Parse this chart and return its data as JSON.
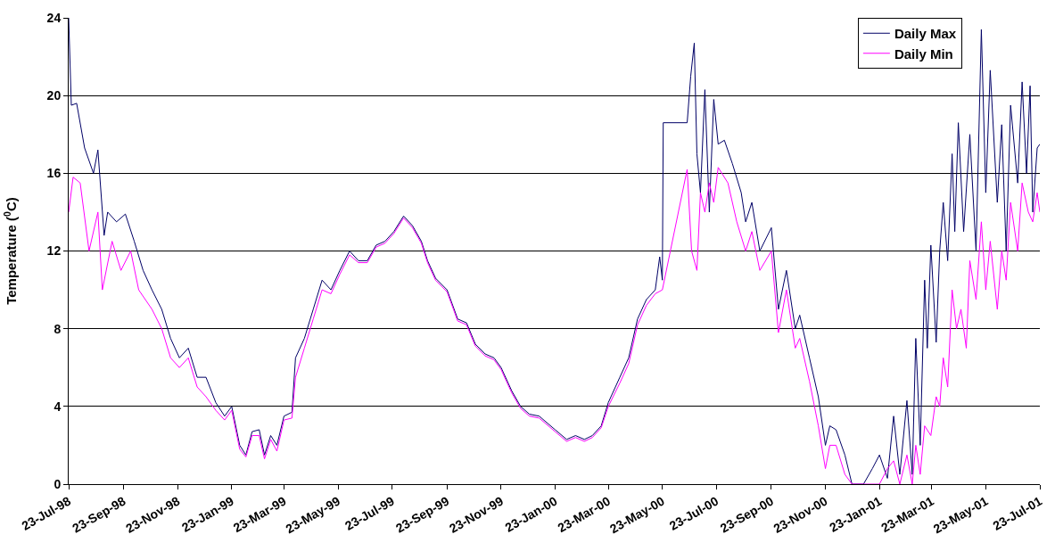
{
  "chart_data": {
    "type": "line",
    "ylabel": "Temperature ($^{0}$C)",
    "xlim": [
      "1998-07-23",
      "2001-07-23"
    ],
    "ylim": [
      0,
      24
    ],
    "yticks": [
      0,
      4,
      8,
      12,
      16,
      20,
      24
    ],
    "xticks": [
      {
        "value": "1998-07-23",
        "label": "23-Jul-98"
      },
      {
        "value": "1998-09-23",
        "label": "23-Sep-98"
      },
      {
        "value": "1998-11-23",
        "label": "23-Nov-98"
      },
      {
        "value": "1999-01-23",
        "label": "23-Jan-99"
      },
      {
        "value": "1999-03-23",
        "label": "23-Mar-99"
      },
      {
        "value": "1999-05-23",
        "label": "23-May-99"
      },
      {
        "value": "1999-07-23",
        "label": "23-Jul-99"
      },
      {
        "value": "1999-09-23",
        "label": "23-Sep-99"
      },
      {
        "value": "1999-11-23",
        "label": "23-Nov-99"
      },
      {
        "value": "2000-01-23",
        "label": "23-Jan-00"
      },
      {
        "value": "2000-03-23",
        "label": "23-Mar-00"
      },
      {
        "value": "2000-05-23",
        "label": "23-May-00"
      },
      {
        "value": "2000-07-23",
        "label": "23-Jul-00"
      },
      {
        "value": "2000-09-23",
        "label": "23-Sep-00"
      },
      {
        "value": "2000-11-23",
        "label": "23-Nov-00"
      },
      {
        "value": "2001-01-23",
        "label": "23-Jan-01"
      },
      {
        "value": "2001-03-23",
        "label": "23-Mar-01"
      },
      {
        "value": "2001-05-23",
        "label": "23-May-01"
      },
      {
        "value": "2001-07-23",
        "label": "23-Jul-01"
      }
    ],
    "grid": "y",
    "legend": "top right",
    "marker": "none",
    "line_style": "solid",
    "series": [
      {
        "name": "Daily Max",
        "color": "#000066",
        "x": [
          "1998-07-23",
          "1998-07-26",
          "1998-08-01",
          "1998-08-10",
          "1998-08-20",
          "1998-08-25",
          "1998-09-01",
          "1998-09-05",
          "1998-09-15",
          "1998-09-25",
          "1998-10-05",
          "1998-10-15",
          "1998-10-25",
          "1998-11-05",
          "1998-11-15",
          "1998-11-25",
          "1998-12-05",
          "1998-12-15",
          "1998-12-25",
          "1999-01-05",
          "1999-01-15",
          "1999-01-23",
          "1999-02-01",
          "1999-02-08",
          "1999-02-15",
          "1999-02-23",
          "1999-03-01",
          "1999-03-08",
          "1999-03-15",
          "1999-03-23",
          "1999-04-01",
          "1999-04-05",
          "1999-04-15",
          "1999-04-25",
          "1999-05-05",
          "1999-05-15",
          "1999-05-25",
          "1999-06-05",
          "1999-06-15",
          "1999-06-25",
          "1999-07-05",
          "1999-07-15",
          "1999-07-25",
          "1999-08-05",
          "1999-08-15",
          "1999-08-25",
          "1999-09-01",
          "1999-09-10",
          "1999-09-23",
          "1999-10-05",
          "1999-10-15",
          "1999-10-25",
          "1999-11-05",
          "1999-11-15",
          "1999-11-23",
          "1999-12-05",
          "1999-12-15",
          "1999-12-25",
          "2000-01-05",
          "2000-01-23",
          "2000-02-05",
          "2000-02-15",
          "2000-02-25",
          "2000-03-05",
          "2000-03-15",
          "2000-03-23",
          "2000-04-05",
          "2000-04-15",
          "2000-04-25",
          "2000-05-05",
          "2000-05-15",
          "2000-05-20",
          "2000-05-23",
          "2000-05-24",
          "2000-06-20",
          "2000-06-24",
          "2000-06-28",
          "2000-07-01",
          "2000-07-05",
          "2000-07-10",
          "2000-07-15",
          "2000-07-20",
          "2000-07-25",
          "2000-08-01",
          "2000-08-10",
          "2000-08-20",
          "2000-08-25",
          "2000-09-01",
          "2000-09-10",
          "2000-09-23",
          "2000-10-01",
          "2000-10-10",
          "2000-10-20",
          "2000-10-25",
          "2000-11-05",
          "2000-11-15",
          "2000-11-23",
          "2000-11-28",
          "2000-12-05",
          "2000-12-15",
          "2000-12-23",
          "2001-01-05",
          "2001-01-15",
          "2001-01-23",
          "2001-02-01",
          "2001-02-08",
          "2001-02-15",
          "2001-02-23",
          "2001-03-01",
          "2001-03-05",
          "2001-03-10",
          "2001-03-15",
          "2001-03-18",
          "2001-03-22",
          "2001-03-28",
          "2001-04-01",
          "2001-04-05",
          "2001-04-10",
          "2001-04-15",
          "2001-04-18",
          "2001-04-22",
          "2001-04-28",
          "2001-05-05",
          "2001-05-12",
          "2001-05-18",
          "2001-05-23",
          "2001-05-28",
          "2001-06-05",
          "2001-06-10",
          "2001-06-15",
          "2001-06-20",
          "2001-06-28",
          "2001-07-03",
          "2001-07-08",
          "2001-07-12",
          "2001-07-15",
          "2001-07-20",
          "2001-07-23"
        ],
        "values": [
          24,
          19.5,
          19.6,
          17.3,
          16,
          17.2,
          12.8,
          14,
          13.5,
          13.9,
          12.5,
          11,
          10,
          9,
          7.5,
          6.5,
          7,
          5.5,
          5.5,
          4.2,
          3.5,
          4,
          2,
          1.5,
          2.7,
          2.8,
          1.5,
          2.5,
          2,
          3.5,
          3.7,
          6.5,
          7.5,
          9,
          10.5,
          10,
          11,
          12,
          11.5,
          11.5,
          12.3,
          12.5,
          13,
          13.8,
          13.3,
          12.5,
          11.5,
          10.6,
          10,
          8.5,
          8.3,
          7.2,
          6.7,
          6.5,
          6,
          4.8,
          4,
          3.6,
          3.5,
          2.8,
          2.3,
          2.5,
          2.3,
          2.5,
          3,
          4.2,
          5.5,
          6.5,
          8.5,
          9.5,
          10,
          11.7,
          10.5,
          18.6,
          18.6,
          21,
          22.7,
          17,
          15,
          20.3,
          14,
          19.8,
          17.5,
          17.7,
          16.5,
          15,
          13.5,
          14.5,
          12,
          13.2,
          9,
          11,
          8,
          8.7,
          6.5,
          4.5,
          2,
          3,
          2.8,
          1.5,
          0,
          0,
          0.8,
          1.5,
          0.3,
          3.5,
          0.5,
          4.3,
          0.5,
          7.5,
          2,
          10.5,
          7,
          12.3,
          7.3,
          12,
          14.5,
          11.5,
          17,
          13,
          18.6,
          13,
          18,
          12,
          23.4,
          15,
          21.3,
          14.5,
          18.5,
          12,
          19.5,
          15.5,
          20.7,
          16,
          20.5,
          14,
          17.3,
          17.5
        ]
      },
      {
        "name": "Daily Min",
        "color": "#ff00ff",
        "x": [
          "1998-07-23",
          "1998-07-28",
          "1998-08-05",
          "1998-08-15",
          "1998-08-25",
          "1998-08-30",
          "1998-09-10",
          "1998-09-20",
          "1998-10-01",
          "1998-10-10",
          "1998-10-25",
          "1998-11-05",
          "1998-11-15",
          "1998-11-25",
          "1998-12-05",
          "1998-12-15",
          "1998-12-25",
          "1999-01-05",
          "1999-01-15",
          "1999-01-23",
          "1999-02-01",
          "1999-02-08",
          "1999-02-15",
          "1999-02-23",
          "1999-03-01",
          "1999-03-08",
          "1999-03-15",
          "1999-03-23",
          "1999-04-01",
          "1999-04-05",
          "1999-04-15",
          "1999-04-25",
          "1999-05-05",
          "1999-05-15",
          "1999-05-25",
          "1999-06-05",
          "1999-06-15",
          "1999-06-25",
          "1999-07-05",
          "1999-07-15",
          "1999-07-25",
          "1999-08-05",
          "1999-08-15",
          "1999-08-25",
          "1999-09-01",
          "1999-09-10",
          "1999-09-23",
          "1999-10-05",
          "1999-10-15",
          "1999-10-25",
          "1999-11-05",
          "1999-11-15",
          "1999-11-23",
          "1999-12-05",
          "1999-12-15",
          "1999-12-25",
          "2000-01-05",
          "2000-01-23",
          "2000-02-05",
          "2000-02-15",
          "2000-02-25",
          "2000-03-05",
          "2000-03-15",
          "2000-03-23",
          "2000-04-05",
          "2000-04-15",
          "2000-04-25",
          "2000-05-05",
          "2000-05-15",
          "2000-05-23",
          "2000-06-20",
          "2000-06-25",
          "2000-07-01",
          "2000-07-05",
          "2000-07-10",
          "2000-07-15",
          "2000-07-20",
          "2000-07-25",
          "2000-08-05",
          "2000-08-15",
          "2000-08-25",
          "2000-09-01",
          "2000-09-10",
          "2000-09-23",
          "2000-10-01",
          "2000-10-10",
          "2000-10-20",
          "2000-10-25",
          "2000-11-05",
          "2000-11-15",
          "2000-11-23",
          "2000-11-28",
          "2000-12-05",
          "2000-12-15",
          "2000-12-23",
          "2001-01-23",
          "2001-02-01",
          "2001-02-08",
          "2001-02-15",
          "2001-02-23",
          "2001-03-01",
          "2001-03-05",
          "2001-03-10",
          "2001-03-15",
          "2001-03-22",
          "2001-03-28",
          "2001-04-01",
          "2001-04-05",
          "2001-04-10",
          "2001-04-15",
          "2001-04-20",
          "2001-04-25",
          "2001-05-01",
          "2001-05-05",
          "2001-05-12",
          "2001-05-18",
          "2001-05-23",
          "2001-05-28",
          "2001-06-05",
          "2001-06-10",
          "2001-06-15",
          "2001-06-20",
          "2001-06-28",
          "2001-07-03",
          "2001-07-10",
          "2001-07-15",
          "2001-07-20",
          "2001-07-23"
        ],
        "values": [
          14,
          15.8,
          15.5,
          12,
          14,
          10,
          12.5,
          11,
          12,
          10,
          9,
          8,
          6.5,
          6,
          6.5,
          5,
          4.5,
          3.8,
          3.3,
          3.8,
          1.8,
          1.4,
          2.5,
          2.5,
          1.3,
          2.3,
          1.7,
          3.3,
          3.4,
          5.5,
          7,
          8.5,
          10,
          9.8,
          10.8,
          11.8,
          11.4,
          11.4,
          12.2,
          12.4,
          12.9,
          13.7,
          13.2,
          12.4,
          11.4,
          10.5,
          9.9,
          8.4,
          8.2,
          7.1,
          6.6,
          6.4,
          5.9,
          4.7,
          3.9,
          3.5,
          3.4,
          2.7,
          2.2,
          2.4,
          2.2,
          2.4,
          2.9,
          4,
          5.2,
          6.2,
          8.2,
          9.2,
          9.8,
          10,
          16.2,
          12,
          11,
          15,
          14,
          15.5,
          14.5,
          16.3,
          15.5,
          13.5,
          12,
          13,
          11,
          12,
          7.8,
          10,
          7,
          7.5,
          5.3,
          3,
          0.8,
          2,
          2,
          0.5,
          0,
          0,
          0.8,
          1.2,
          0,
          1.5,
          0,
          2,
          0.5,
          3,
          2.5,
          4.5,
          4,
          6.5,
          5,
          10,
          8,
          9,
          7,
          11.5,
          9.5,
          13.5,
          10,
          12.5,
          9,
          12,
          10.5,
          14.5,
          12,
          15.5,
          14,
          13.5,
          15,
          14
        ]
      }
    ]
  }
}
